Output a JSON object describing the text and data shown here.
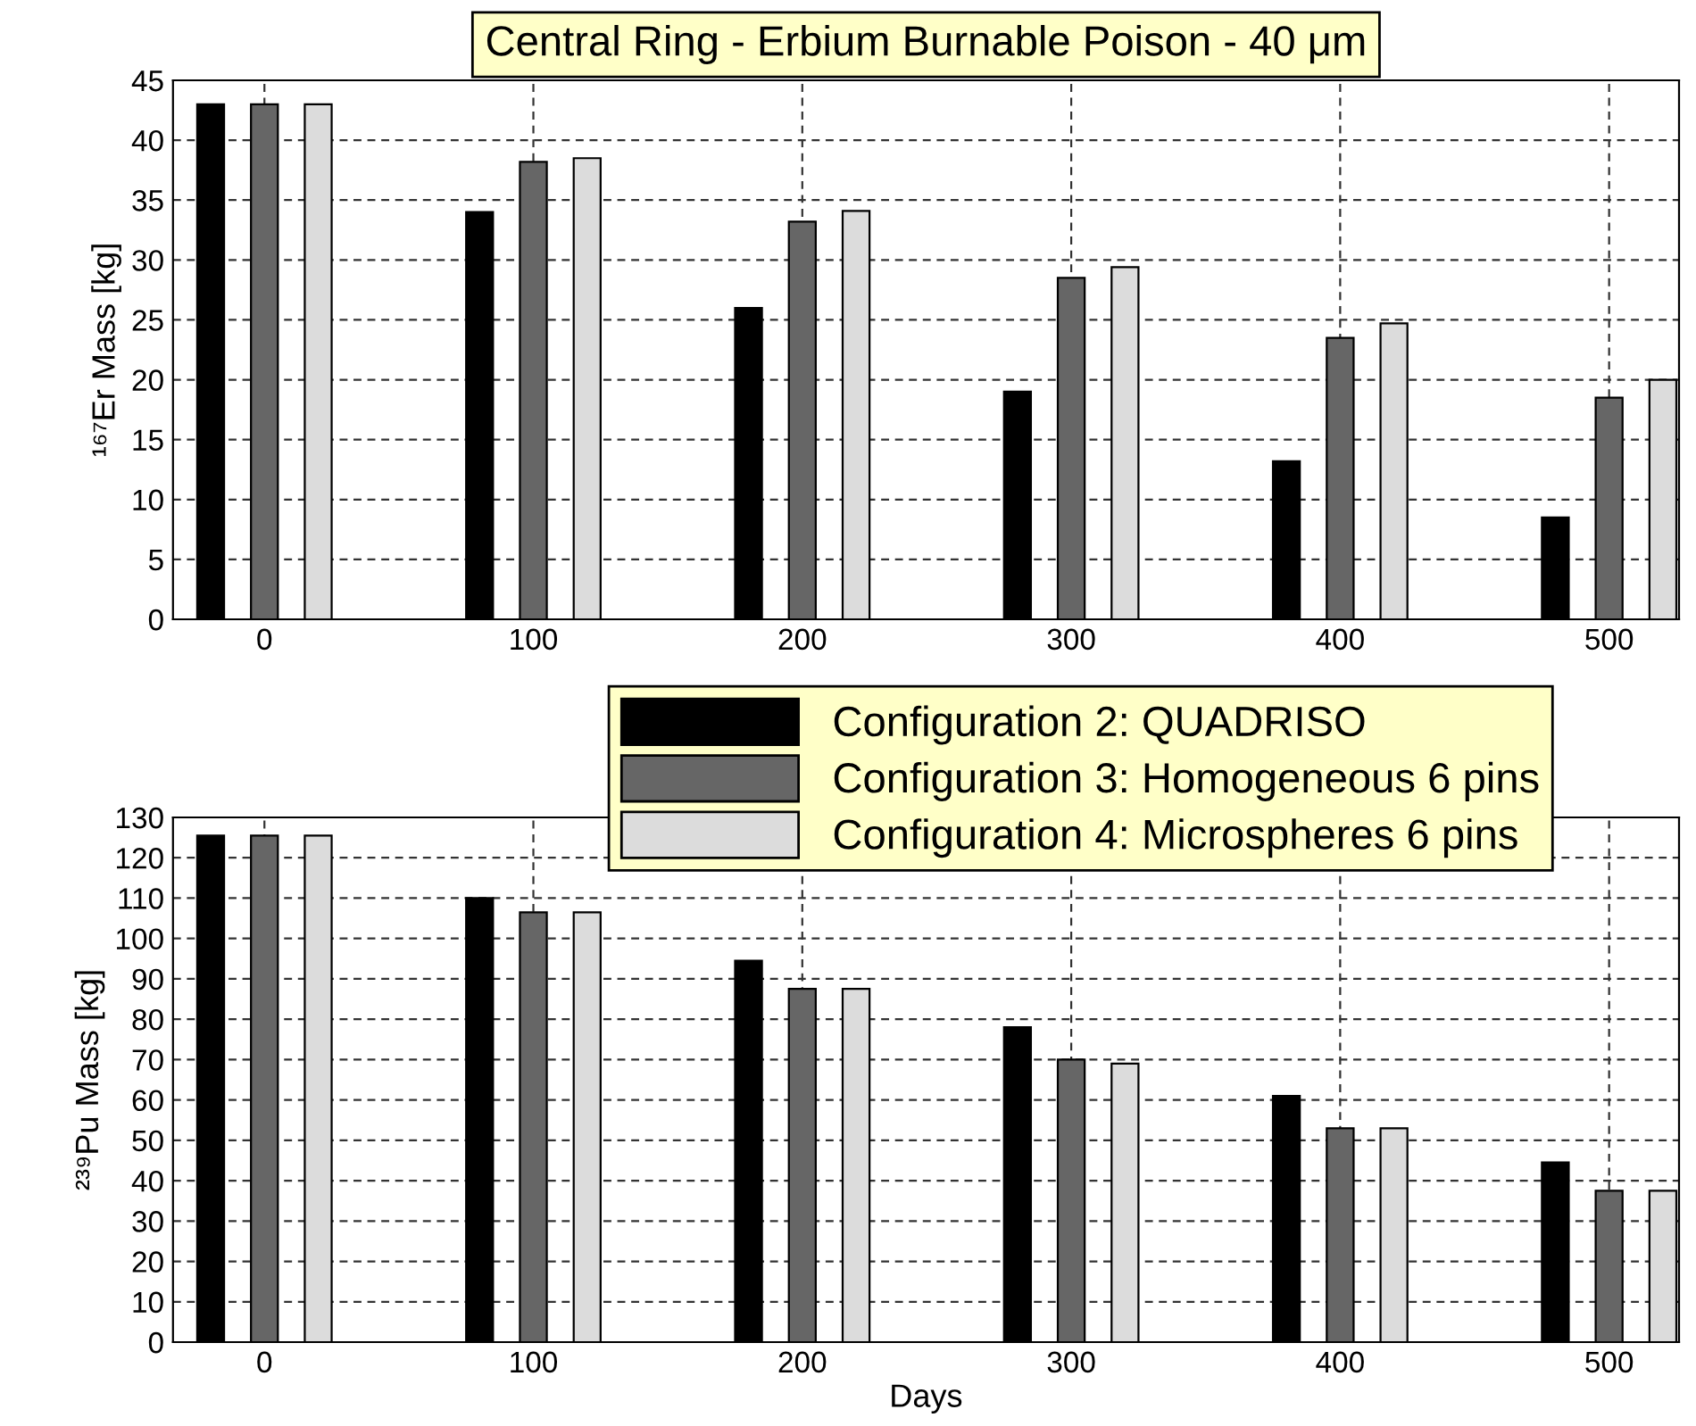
{
  "chart_data": [
    {
      "type": "bar",
      "title": "Central Ring - Erbium Burnable Poison - 40 μm",
      "ylabel": "¹⁶⁷Er Mass [kg]",
      "categories": [
        "0",
        "100",
        "200",
        "300",
        "400",
        "500"
      ],
      "series": [
        {
          "color": "#000000",
          "values": [
            43,
            34,
            26,
            19,
            13.2,
            8.5
          ]
        },
        {
          "color": "#666666",
          "values": [
            43,
            38.2,
            33.2,
            28.5,
            23.5,
            18.5
          ]
        },
        {
          "color": "#dcdcdc",
          "values": [
            43,
            38.5,
            34.1,
            29.4,
            24.7,
            20
          ]
        }
      ],
      "ylim": [
        0,
        45
      ],
      "yticks": [
        0,
        5,
        10,
        15,
        20,
        25,
        30,
        35,
        40,
        45
      ],
      "grid": true,
      "legend": false
    },
    {
      "type": "bar",
      "ylabel": "²³⁹Pu Mass [kg]",
      "xlabel": "Days",
      "categories": [
        "0",
        "100",
        "200",
        "300",
        "400",
        "500"
      ],
      "series": [
        {
          "name": "Configuration 2: QUADRISO",
          "color": "#000000",
          "values": [
            125.5,
            110,
            94.5,
            78,
            61,
            44.5
          ]
        },
        {
          "name": "Configuration 3: Homogeneous 6 pins",
          "color": "#666666",
          "values": [
            125.5,
            106.5,
            87.5,
            70,
            53,
            37.5
          ]
        },
        {
          "name": "Configuration 4: Microspheres 6 pins",
          "color": "#dcdcdc",
          "values": [
            125.5,
            106.5,
            87.5,
            69,
            53,
            37.5
          ]
        }
      ],
      "ylim": [
        0,
        130
      ],
      "yticks": [
        0,
        10,
        20,
        30,
        40,
        50,
        60,
        70,
        80,
        90,
        100,
        110,
        120,
        130
      ],
      "grid": true,
      "legend": "top right"
    }
  ]
}
